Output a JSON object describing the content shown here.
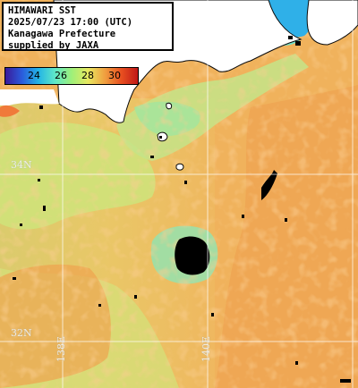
{
  "header": {
    "title": "HIMAWARI SST",
    "datetime": "2025/07/23 17:00 (UTC)",
    "region": "Kanagawa Prefecture",
    "credit": "supplied by JAXA"
  },
  "scale": {
    "ticks": [
      "24",
      "26",
      "28",
      "30"
    ],
    "colors": [
      "#3a1a9a",
      "#2a5bdc",
      "#23b4e6",
      "#5fe8c8",
      "#9ef07a",
      "#e8e860",
      "#f0a040",
      "#e85020",
      "#c01818"
    ]
  },
  "grid": {
    "lat_labels": [
      "34N",
      "32N"
    ],
    "lon_labels": [
      "138E",
      "140E"
    ]
  },
  "colors": {
    "land": "#ffffff",
    "cloud": "#000000",
    "gridline": "#ffffff",
    "sst_base": "#f2b258"
  }
}
